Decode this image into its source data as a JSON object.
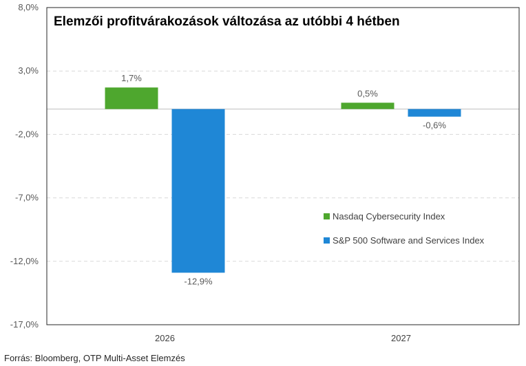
{
  "chart_data": {
    "type": "bar",
    "title": "Elemzői profitvárakozások változása az utóbbi 4 hétben",
    "categories": [
      "2026",
      "2027"
    ],
    "series": [
      {
        "name": "Nasdaq Cybersecurity Index",
        "color": "#4ea72e",
        "values": [
          1.7,
          0.5
        ],
        "labels": [
          "1,7%",
          "0,5%"
        ]
      },
      {
        "name": "S&P 500 Software and Services Index",
        "color": "#1f87d6",
        "values": [
          -12.9,
          -0.6
        ],
        "labels": [
          "-12,9%",
          "-0,6%"
        ]
      }
    ],
    "ylim": [
      -17,
      8
    ],
    "yticks": [
      8,
      3,
      -2,
      -7,
      -12,
      -17
    ],
    "ytick_labels": [
      "8,0%",
      "3,0%",
      "-2,0%",
      "-7,0%",
      "-12,0%",
      "-17,0%"
    ],
    "grid": true,
    "legend_position": "center-right"
  },
  "source": "Forrás: Bloomberg, OTP Multi-Asset Elemzés"
}
